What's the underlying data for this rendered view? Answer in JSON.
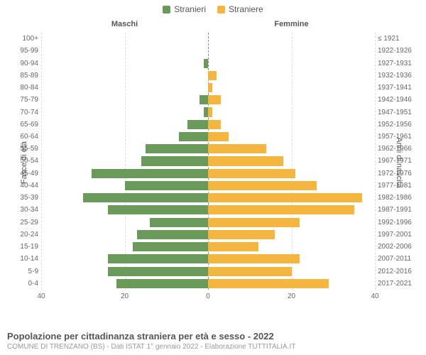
{
  "legend": [
    {
      "label": "Stranieri",
      "color": "#6a9a5a"
    },
    {
      "label": "Straniere",
      "color": "#f4b63f"
    }
  ],
  "columns": {
    "left": "Maschi",
    "right": "Femmine"
  },
  "axes": {
    "y_left_title": "Fasce di età",
    "y_right_title": "Anni di nascita",
    "x_max": 40,
    "x_ticks": [
      40,
      20,
      0,
      20,
      40
    ]
  },
  "series_colors": {
    "male": "#6a9a5a",
    "female": "#f4b63f"
  },
  "background_color": "#ffffff",
  "grid_color": "#dddddd",
  "center_line_color": "#888888",
  "rows": [
    {
      "age": "100+",
      "birth": "≤ 1921",
      "m": 0,
      "f": 0
    },
    {
      "age": "95-99",
      "birth": "1922-1926",
      "m": 0,
      "f": 0
    },
    {
      "age": "90-94",
      "birth": "1927-1931",
      "m": 1,
      "f": 0
    },
    {
      "age": "85-89",
      "birth": "1932-1936",
      "m": 0,
      "f": 2
    },
    {
      "age": "80-84",
      "birth": "1937-1941",
      "m": 0,
      "f": 1
    },
    {
      "age": "75-79",
      "birth": "1942-1946",
      "m": 2,
      "f": 3
    },
    {
      "age": "70-74",
      "birth": "1947-1951",
      "m": 1,
      "f": 1
    },
    {
      "age": "65-69",
      "birth": "1952-1956",
      "m": 5,
      "f": 3
    },
    {
      "age": "60-64",
      "birth": "1957-1961",
      "m": 7,
      "f": 5
    },
    {
      "age": "55-59",
      "birth": "1962-1966",
      "m": 15,
      "f": 14
    },
    {
      "age": "50-54",
      "birth": "1967-1971",
      "m": 16,
      "f": 18
    },
    {
      "age": "45-49",
      "birth": "1972-1976",
      "m": 28,
      "f": 21
    },
    {
      "age": "40-44",
      "birth": "1977-1981",
      "m": 20,
      "f": 26
    },
    {
      "age": "35-39",
      "birth": "1982-1986",
      "m": 30,
      "f": 37
    },
    {
      "age": "30-34",
      "birth": "1987-1991",
      "m": 24,
      "f": 35
    },
    {
      "age": "25-29",
      "birth": "1992-1996",
      "m": 14,
      "f": 22
    },
    {
      "age": "20-24",
      "birth": "1997-2001",
      "m": 17,
      "f": 16
    },
    {
      "age": "15-19",
      "birth": "2002-2006",
      "m": 18,
      "f": 12
    },
    {
      "age": "10-14",
      "birth": "2007-2011",
      "m": 24,
      "f": 22
    },
    {
      "age": "5-9",
      "birth": "2012-2016",
      "m": 24,
      "f": 20
    },
    {
      "age": "0-4",
      "birth": "2017-2021",
      "m": 22,
      "f": 29
    }
  ],
  "footer": {
    "title": "Popolazione per cittadinanza straniera per età e sesso - 2022",
    "subtitle": "COMUNE DI TRENZANO (BS) - Dati ISTAT 1° gennaio 2022 - Elaborazione TUTTITALIA.IT"
  },
  "fonts": {
    "legend_size": 12,
    "tick_size": 10,
    "col_title_size": 11,
    "axis_title_size": 11,
    "footer_title_size": 13,
    "footer_sub_size": 10
  }
}
